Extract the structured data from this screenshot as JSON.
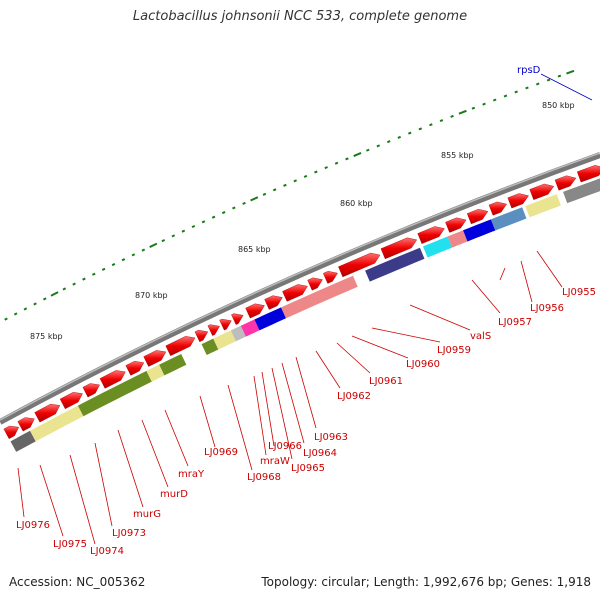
{
  "title": "Lactobacillus johnsonii NCC 533, complete genome",
  "footer": {
    "accession": "Accession: NC_005362",
    "summary": "Topology: circular; Length: 1,992,676 bp; Genes: 1,918"
  },
  "colors": {
    "gene_arrow": "#ee0000",
    "backbone": "#888888",
    "tick": "#1a7a1a",
    "label": "#cc0000",
    "highlight_label": "#0000cc"
  },
  "kbp_ticks": [
    {
      "label": "850 kbp"
    },
    {
      "label": "855 kbp"
    },
    {
      "label": "860 kbp"
    },
    {
      "label": "865 kbp"
    },
    {
      "label": "870 kbp"
    },
    {
      "label": "875 kbp"
    }
  ],
  "gene_labels": [
    {
      "id": "LJ0955",
      "text": "LJ0955"
    },
    {
      "id": "LJ0956",
      "text": "LJ0956"
    },
    {
      "id": "LJ0957",
      "text": "LJ0957"
    },
    {
      "id": "valS",
      "text": "valS"
    },
    {
      "id": "LJ0959",
      "text": "LJ0959"
    },
    {
      "id": "LJ0960",
      "text": "LJ0960"
    },
    {
      "id": "LJ0961",
      "text": "LJ0961"
    },
    {
      "id": "LJ0962",
      "text": "LJ0962"
    },
    {
      "id": "LJ0963",
      "text": "LJ0963"
    },
    {
      "id": "LJ0964",
      "text": "LJ0964"
    },
    {
      "id": "LJ0965",
      "text": "LJ0965"
    },
    {
      "id": "LJ0966",
      "text": "LJ0966"
    },
    {
      "id": "mraW",
      "text": "mraW"
    },
    {
      "id": "LJ0968",
      "text": "LJ0968"
    },
    {
      "id": "LJ0969",
      "text": "LJ0969"
    },
    {
      "id": "mraY",
      "text": "mraY"
    },
    {
      "id": "murD",
      "text": "murD"
    },
    {
      "id": "murG",
      "text": "murG"
    },
    {
      "id": "LJ0973",
      "text": "LJ0973"
    },
    {
      "id": "LJ0974",
      "text": "LJ0974"
    },
    {
      "id": "LJ0975",
      "text": "LJ0975"
    },
    {
      "id": "LJ0976",
      "text": "LJ0976"
    }
  ],
  "highlight_gene": {
    "text": "rpsD"
  }
}
